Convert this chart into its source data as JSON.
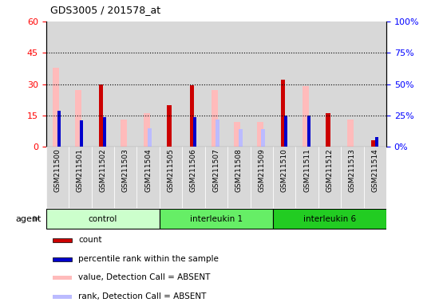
{
  "title": "GDS3005 / 201578_at",
  "samples": [
    "GSM211500",
    "GSM211501",
    "GSM211502",
    "GSM211503",
    "GSM211504",
    "GSM211505",
    "GSM211506",
    "GSM211507",
    "GSM211508",
    "GSM211509",
    "GSM211510",
    "GSM211511",
    "GSM211512",
    "GSM211513",
    "GSM211514"
  ],
  "groups": [
    {
      "label": "control",
      "color": "#ccffcc",
      "start": 0,
      "end": 5
    },
    {
      "label": "interleukin 1",
      "color": "#66ee66",
      "start": 5,
      "end": 10
    },
    {
      "label": "interleukin 6",
      "color": "#22cc22",
      "start": 10,
      "end": 15
    }
  ],
  "count_values": [
    0,
    0,
    30,
    0,
    0,
    20,
    29.5,
    0,
    0,
    0,
    32,
    0,
    16,
    0,
    3
  ],
  "rank_values": [
    29,
    21,
    24,
    0,
    0,
    0,
    24,
    0,
    0,
    0,
    25,
    25,
    0,
    0,
    8
  ],
  "absent_value": [
    38,
    27,
    0,
    13,
    16,
    0,
    0,
    27,
    12,
    12,
    0,
    29,
    0,
    13,
    0
  ],
  "absent_rank": [
    0,
    0,
    0,
    0,
    15,
    0,
    0,
    22,
    14,
    14,
    0,
    0,
    0,
    0,
    0
  ],
  "left_ylim": [
    0,
    60
  ],
  "right_ylim": [
    0,
    100
  ],
  "left_yticks": [
    0,
    15,
    30,
    45,
    60
  ],
  "right_yticks": [
    0,
    25,
    50,
    75,
    100
  ],
  "dotted_lines": [
    15,
    30,
    45
  ],
  "count_color": "#cc0000",
  "rank_color": "#0000cc",
  "absent_value_color": "#ffbbbb",
  "absent_rank_color": "#bbbbff",
  "col_bg_color": "#d8d8d8",
  "legend_items": [
    {
      "color": "#cc0000",
      "label": "count"
    },
    {
      "color": "#0000cc",
      "label": "percentile rank within the sample"
    },
    {
      "color": "#ffbbbb",
      "label": "value, Detection Call = ABSENT"
    },
    {
      "color": "#bbbbff",
      "label": "rank, Detection Call = ABSENT"
    }
  ]
}
